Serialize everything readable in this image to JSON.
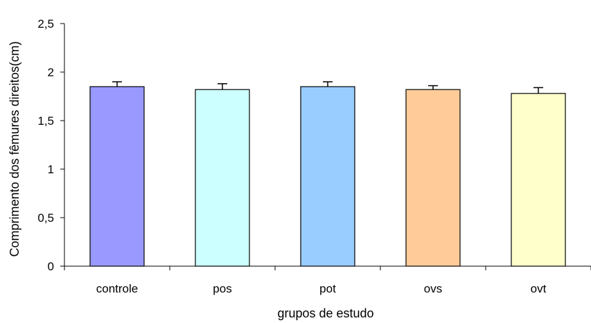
{
  "chart_data": {
    "type": "bar",
    "title": "",
    "xlabel": "grupos de estudo",
    "ylabel": "Comprimento dos fêmures direitos(cm)",
    "categories": [
      "controle",
      "pos",
      "pot",
      "ovs",
      "ovt"
    ],
    "values": [
      1.85,
      1.82,
      1.85,
      1.82,
      1.78
    ],
    "errors": [
      0.05,
      0.06,
      0.05,
      0.04,
      0.06
    ],
    "colors": [
      "#9999ff",
      "#ccffff",
      "#99ccff",
      "#ffcc99",
      "#ffffcc"
    ],
    "ylim": [
      0,
      2.5
    ],
    "yticks": [
      "0",
      "0,5",
      "1",
      "1,5",
      "2",
      "2,5"
    ],
    "ytick_values": [
      0,
      0.5,
      1,
      1.5,
      2,
      2.5
    ],
    "grid": false,
    "legend": "none"
  }
}
